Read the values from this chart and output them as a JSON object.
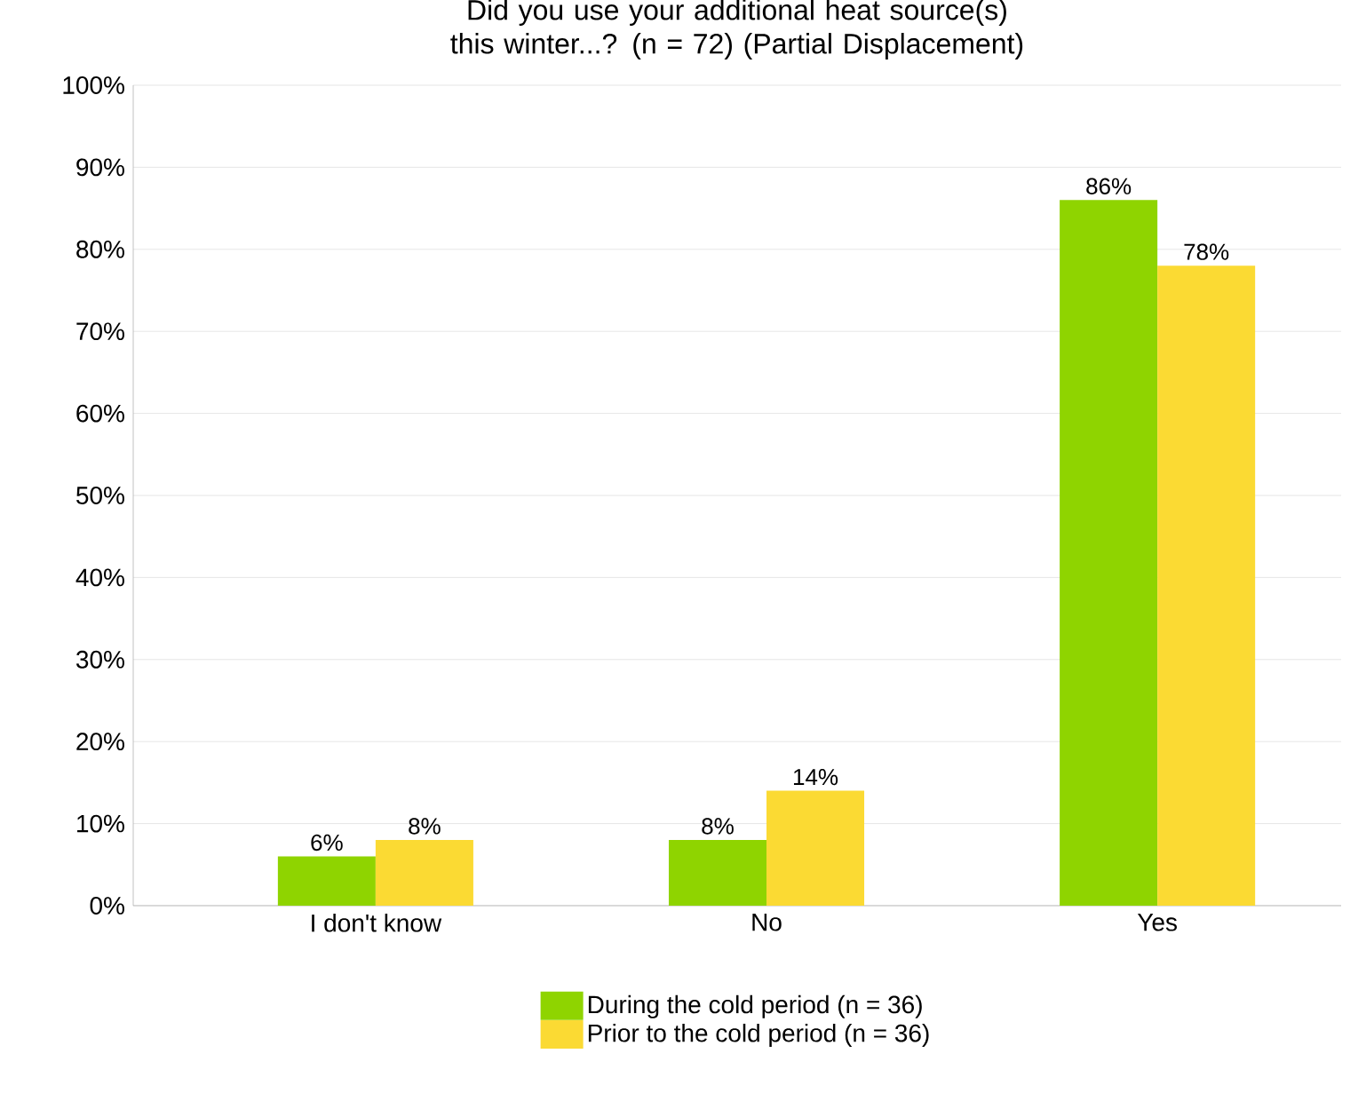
{
  "chart_data": {
    "type": "bar",
    "title": "Did you use your additional heat source(s) this winter...? (n = 72) (Partial Displacement)",
    "categories": [
      "I don't know",
      "No",
      "Yes"
    ],
    "series": [
      {
        "name": "During the cold period (n = 36)",
        "color": "#8fd400",
        "values": [
          6,
          8,
          86
        ],
        "value_labels": [
          "6%",
          "8%",
          "86%"
        ]
      },
      {
        "name": "Prior to the cold period (n = 36)",
        "color": "#fbda33",
        "values": [
          8,
          14,
          78
        ],
        "value_labels": [
          "8%",
          "14%",
          "78%"
        ]
      }
    ],
    "ylim": [
      0,
      100
    ],
    "yticks": [
      {
        "value": 0,
        "label": "0%"
      },
      {
        "value": 10,
        "label": "10%"
      },
      {
        "value": 20,
        "label": "20%"
      },
      {
        "value": 30,
        "label": "30%"
      },
      {
        "value": 40,
        "label": "40%"
      },
      {
        "value": 50,
        "label": "50%"
      },
      {
        "value": 60,
        "label": "60%"
      },
      {
        "value": 70,
        "label": "70%"
      },
      {
        "value": 80,
        "label": "80%"
      },
      {
        "value": 90,
        "label": "90%"
      },
      {
        "value": 100,
        "label": "100%"
      }
    ],
    "grid": "y",
    "legend": "bottom"
  }
}
